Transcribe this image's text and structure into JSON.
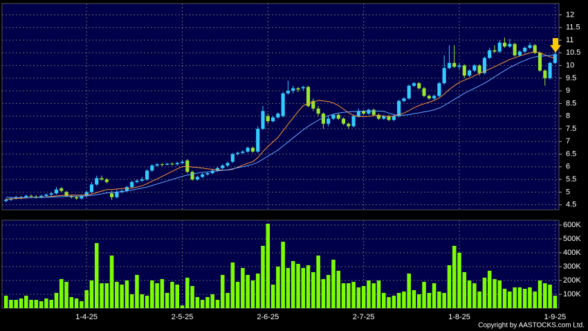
{
  "chart_data": {
    "type": "candlestick",
    "grid": true,
    "up_color": "#33ccff",
    "down_color": "#99e62e",
    "categories": [
      null,
      null,
      null,
      null,
      null,
      null,
      null,
      null,
      null,
      null,
      null,
      null,
      null,
      null,
      null,
      null,
      "1-4-25",
      null,
      null,
      null,
      null,
      null,
      null,
      null,
      null,
      null,
      null,
      null,
      null,
      null,
      null,
      null,
      null,
      null,
      null,
      "2-5-25",
      null,
      null,
      null,
      null,
      null,
      null,
      null,
      null,
      null,
      null,
      null,
      null,
      null,
      null,
      null,
      null,
      "2-6-25",
      null,
      null,
      null,
      null,
      null,
      null,
      null,
      null,
      null,
      null,
      null,
      null,
      null,
      null,
      null,
      null,
      null,
      null,
      "2-7-25",
      null,
      null,
      null,
      null,
      null,
      null,
      null,
      null,
      null,
      null,
      null,
      null,
      null,
      null,
      null,
      null,
      null,
      null,
      "1-8-25",
      null,
      null,
      null,
      null,
      null,
      null,
      null,
      null,
      null,
      null,
      null,
      null,
      null,
      null,
      null,
      null,
      null,
      null,
      "1-9-25"
    ],
    "ohlc": [
      [
        4.65,
        4.75,
        4.6,
        4.7
      ],
      [
        4.7,
        4.8,
        4.65,
        4.75
      ],
      [
        4.75,
        4.85,
        4.7,
        4.8
      ],
      [
        4.8,
        4.85,
        4.72,
        4.78
      ],
      [
        4.8,
        4.9,
        4.75,
        4.85
      ],
      [
        4.85,
        4.9,
        4.78,
        4.82
      ],
      [
        4.82,
        4.88,
        4.75,
        4.8
      ],
      [
        4.8,
        4.9,
        4.76,
        4.85
      ],
      [
        4.85,
        4.95,
        4.8,
        4.9
      ],
      [
        4.9,
        5.0,
        4.85,
        4.95
      ],
      [
        4.95,
        5.2,
        4.9,
        5.1
      ],
      [
        5.15,
        5.2,
        5.0,
        5.05
      ],
      [
        5.0,
        5.05,
        4.8,
        4.85
      ],
      [
        4.85,
        4.9,
        4.75,
        4.8
      ],
      [
        4.8,
        4.85,
        4.7,
        4.75
      ],
      [
        4.75,
        4.9,
        4.7,
        4.85
      ],
      [
        4.85,
        5.05,
        4.8,
        5.0
      ],
      [
        5.0,
        5.4,
        4.95,
        5.3
      ],
      [
        5.3,
        5.65,
        5.25,
        5.55
      ],
      [
        5.55,
        5.65,
        5.45,
        5.5
      ],
      [
        5.5,
        5.55,
        5.35,
        5.4
      ],
      [
        4.95,
        5.05,
        4.7,
        4.8
      ],
      [
        4.8,
        5.1,
        4.75,
        5.0
      ],
      [
        5.0,
        5.1,
        4.95,
        5.05
      ],
      [
        5.05,
        5.25,
        5.0,
        5.2
      ],
      [
        5.2,
        5.45,
        5.15,
        5.4
      ],
      [
        5.4,
        5.5,
        5.35,
        5.45
      ],
      [
        5.45,
        5.6,
        5.4,
        5.5
      ],
      [
        5.5,
        5.9,
        5.45,
        5.85
      ],
      [
        5.85,
        6.1,
        5.8,
        6.05
      ],
      [
        6.05,
        6.15,
        6.0,
        6.1
      ],
      [
        6.1,
        6.15,
        6.02,
        6.08
      ],
      [
        6.08,
        6.15,
        6.05,
        6.12
      ],
      [
        6.12,
        6.18,
        6.05,
        6.1
      ],
      [
        6.1,
        6.2,
        6.05,
        6.15
      ],
      [
        6.15,
        6.25,
        6.1,
        6.2
      ],
      [
        6.25,
        6.3,
        5.75,
        5.8
      ],
      [
        5.8,
        5.85,
        5.45,
        5.5
      ],
      [
        5.5,
        5.65,
        5.45,
        5.6
      ],
      [
        5.6,
        5.75,
        5.55,
        5.7
      ],
      [
        5.7,
        5.8,
        5.65,
        5.75
      ],
      [
        5.75,
        5.9,
        5.7,
        5.85
      ],
      [
        5.85,
        6.0,
        5.8,
        5.95
      ],
      [
        5.95,
        6.1,
        5.9,
        6.05
      ],
      [
        6.05,
        6.2,
        6.0,
        6.15
      ],
      [
        6.2,
        6.55,
        6.15,
        6.5
      ],
      [
        6.5,
        6.6,
        6.45,
        6.55
      ],
      [
        6.55,
        6.65,
        6.5,
        6.6
      ],
      [
        6.6,
        6.8,
        6.55,
        6.75
      ],
      [
        6.75,
        6.8,
        6.55,
        6.6
      ],
      [
        6.6,
        7.6,
        6.55,
        7.5
      ],
      [
        7.5,
        8.4,
        7.45,
        8.2
      ],
      [
        8.0,
        8.1,
        7.7,
        7.8
      ],
      [
        7.8,
        8.0,
        7.75,
        7.95
      ],
      [
        7.95,
        8.15,
        7.9,
        8.1
      ],
      [
        8.0,
        8.95,
        7.95,
        8.9
      ],
      [
        8.9,
        9.4,
        8.85,
        9.0
      ],
      [
        9.0,
        9.2,
        8.9,
        9.1
      ],
      [
        9.1,
        9.15,
        8.95,
        9.05
      ],
      [
        9.1,
        9.2,
        9.0,
        9.15
      ],
      [
        9.15,
        9.2,
        8.35,
        8.4
      ],
      [
        8.6,
        8.7,
        8.2,
        8.3
      ],
      [
        8.3,
        8.4,
        8.0,
        8.1
      ],
      [
        8.1,
        8.15,
        7.5,
        7.7
      ],
      [
        7.7,
        8.0,
        7.6,
        7.9
      ],
      [
        7.9,
        8.1,
        7.85,
        8.05
      ],
      [
        8.05,
        8.1,
        7.85,
        7.9
      ],
      [
        7.9,
        7.95,
        7.65,
        7.7
      ],
      [
        7.7,
        7.75,
        7.5,
        7.6
      ],
      [
        7.6,
        8.05,
        7.55,
        8.0
      ],
      [
        8.0,
        8.3,
        7.95,
        8.2
      ],
      [
        8.2,
        8.25,
        8.05,
        8.1
      ],
      [
        8.1,
        8.3,
        8.05,
        8.25
      ],
      [
        8.25,
        8.3,
        8.0,
        8.05
      ],
      [
        8.05,
        8.1,
        7.85,
        7.9
      ],
      [
        7.9,
        8.05,
        7.85,
        8.0
      ],
      [
        8.0,
        8.05,
        7.8,
        7.85
      ],
      [
        7.85,
        8.05,
        7.8,
        8.0
      ],
      [
        8.0,
        8.65,
        7.95,
        8.6
      ],
      [
        8.6,
        8.75,
        8.55,
        8.7
      ],
      [
        8.7,
        9.25,
        8.65,
        9.2
      ],
      [
        9.2,
        9.35,
        9.15,
        9.3
      ],
      [
        9.3,
        9.35,
        9.05,
        9.1
      ],
      [
        9.1,
        9.15,
        8.75,
        8.8
      ],
      [
        8.8,
        8.85,
        8.65,
        8.7
      ],
      [
        8.7,
        8.85,
        8.65,
        8.8
      ],
      [
        8.8,
        9.35,
        8.75,
        9.3
      ],
      [
        9.3,
        10.4,
        9.25,
        9.9
      ],
      [
        9.9,
        10.8,
        9.85,
        10.1
      ],
      [
        10.1,
        10.8,
        9.9,
        9.95
      ],
      [
        9.95,
        10.1,
        9.85,
        10.0
      ],
      [
        10.0,
        10.05,
        9.5,
        9.6
      ],
      [
        9.6,
        9.85,
        9.55,
        9.8
      ],
      [
        9.8,
        10.05,
        9.75,
        10.0
      ],
      [
        10.0,
        10.05,
        9.6,
        9.7
      ],
      [
        9.7,
        10.35,
        9.65,
        10.3
      ],
      [
        10.3,
        10.7,
        10.25,
        10.6
      ],
      [
        10.6,
        10.8,
        10.5,
        10.55
      ],
      [
        10.55,
        11.0,
        10.5,
        10.9
      ],
      [
        10.9,
        11.1,
        10.7,
        10.75
      ],
      [
        10.75,
        11.05,
        10.7,
        10.85
      ],
      [
        10.85,
        10.9,
        10.35,
        10.4
      ],
      [
        10.4,
        10.6,
        10.35,
        10.55
      ],
      [
        10.55,
        10.75,
        10.5,
        10.7
      ],
      [
        10.7,
        10.9,
        10.65,
        10.8
      ],
      [
        10.8,
        10.85,
        10.45,
        10.5
      ],
      [
        10.5,
        10.55,
        9.75,
        9.8
      ],
      [
        9.8,
        9.85,
        9.2,
        9.5
      ],
      [
        9.5,
        10.15,
        9.45,
        10.1
      ],
      [
        10.1,
        10.5,
        10.05,
        10.45
      ]
    ],
    "ylim": [
      4.3,
      12.45
    ],
    "yticks": [
      4.5,
      5,
      5.5,
      6,
      6.5,
      7,
      7.5,
      8,
      8.5,
      9,
      9.5,
      10,
      10.5,
      11,
      11.5,
      12
    ],
    "ma_lines": [
      {
        "color": "#ff9933",
        "values": [
          4.72,
          4.73,
          4.75,
          4.76,
          4.77,
          4.78,
          4.79,
          4.8,
          4.81,
          4.83,
          4.85,
          4.87,
          4.88,
          4.88,
          4.88,
          4.88,
          4.89,
          4.92,
          4.98,
          5.04,
          5.1,
          5.1,
          5.12,
          5.14,
          5.15,
          5.16,
          5.2,
          5.25,
          5.33,
          5.43,
          5.52,
          5.62,
          5.72,
          5.82,
          5.92,
          6.0,
          6.02,
          5.99,
          5.97,
          5.95,
          5.92,
          5.9,
          5.88,
          5.87,
          5.87,
          5.9,
          5.98,
          6.06,
          6.14,
          6.2,
          6.36,
          6.6,
          6.8,
          6.98,
          7.16,
          7.42,
          7.68,
          7.93,
          8.18,
          8.42,
          8.5,
          8.56,
          8.62,
          8.6,
          8.58,
          8.52,
          8.42,
          8.28,
          8.13,
          8.03,
          7.98,
          7.98,
          7.99,
          8.02,
          8.03,
          8.0,
          7.99,
          8.0,
          8.06,
          8.12,
          8.22,
          8.33,
          8.42,
          8.49,
          8.55,
          8.62,
          8.72,
          8.87,
          9.05,
          9.2,
          9.33,
          9.42,
          9.5,
          9.6,
          9.69,
          9.77,
          9.86,
          9.95,
          10.05,
          10.14,
          10.24,
          10.3,
          10.38,
          10.44,
          10.5,
          10.55,
          10.5,
          10.42,
          10.34,
          10.3
        ]
      },
      {
        "color": "#66aaff",
        "values": [
          4.8,
          4.79,
          4.78,
          4.78,
          4.78,
          4.78,
          4.79,
          4.79,
          4.8,
          4.8,
          4.81,
          4.82,
          4.83,
          4.83,
          4.84,
          4.84,
          4.85,
          4.87,
          4.9,
          4.93,
          4.97,
          4.98,
          5.0,
          5.02,
          5.05,
          5.08,
          5.12,
          5.16,
          5.2,
          5.26,
          5.32,
          5.38,
          5.44,
          5.5,
          5.56,
          5.62,
          5.67,
          5.71,
          5.75,
          5.78,
          5.8,
          5.82,
          5.84,
          5.86,
          5.88,
          5.92,
          5.96,
          6.0,
          6.05,
          6.1,
          6.18,
          6.3,
          6.42,
          6.54,
          6.66,
          6.82,
          6.98,
          7.14,
          7.3,
          7.46,
          7.6,
          7.72,
          7.84,
          7.94,
          8.02,
          8.08,
          8.12,
          8.15,
          8.17,
          8.18,
          8.19,
          8.2,
          8.2,
          8.2,
          8.2,
          8.19,
          8.12,
          8.06,
          8.03,
          8.04,
          8.06,
          8.1,
          8.13,
          8.17,
          8.2,
          8.25,
          8.32,
          8.42,
          8.54,
          8.66,
          8.78,
          8.9,
          9.0,
          9.1,
          9.2,
          9.3,
          9.42,
          9.55,
          9.68,
          9.8,
          9.92,
          10.02,
          10.12,
          10.2,
          10.28,
          10.34,
          10.37,
          10.38,
          10.4,
          10.42
        ]
      }
    ],
    "volume": {
      "color": "#7cfc00",
      "ylim": [
        0,
        635000
      ],
      "yticks": [
        {
          "value": 100000,
          "label": "100K"
        },
        {
          "value": 200000,
          "label": "200K"
        },
        {
          "value": 300000,
          "label": "300K"
        },
        {
          "value": 400000,
          "label": "400K"
        },
        {
          "value": 500000,
          "label": "500K"
        },
        {
          "value": 600000,
          "label": "600K"
        }
      ],
      "values": [
        90000,
        60000,
        60000,
        70000,
        90000,
        60000,
        60000,
        50000,
        70000,
        60000,
        110000,
        210000,
        190000,
        80000,
        70000,
        50000,
        130000,
        200000,
        470000,
        180000,
        180000,
        380000,
        190000,
        170000,
        200000,
        100000,
        240000,
        100000,
        90000,
        200000,
        180000,
        210000,
        110000,
        190000,
        170000,
        20000,
        220000,
        160000,
        80000,
        60000,
        80000,
        100000,
        60000,
        240000,
        110000,
        330000,
        190000,
        290000,
        240000,
        200000,
        250000,
        450000,
        610000,
        170000,
        300000,
        480000,
        290000,
        340000,
        320000,
        290000,
        310000,
        260000,
        380000,
        210000,
        240000,
        350000,
        270000,
        180000,
        180000,
        190000,
        150000,
        160000,
        200000,
        180000,
        200000,
        110000,
        80000,
        90000,
        110000,
        120000,
        250000,
        130000,
        100000,
        190000,
        110000,
        180000,
        120000,
        110000,
        310000,
        450000,
        400000,
        260000,
        200000,
        180000,
        120000,
        220000,
        270000,
        210000,
        200000,
        140000,
        120000,
        150000,
        150000,
        140000,
        150000,
        120000,
        200000,
        180000,
        170000,
        90000
      ]
    },
    "copyright": "Copyright by AASTOCKS.com Ltd."
  }
}
